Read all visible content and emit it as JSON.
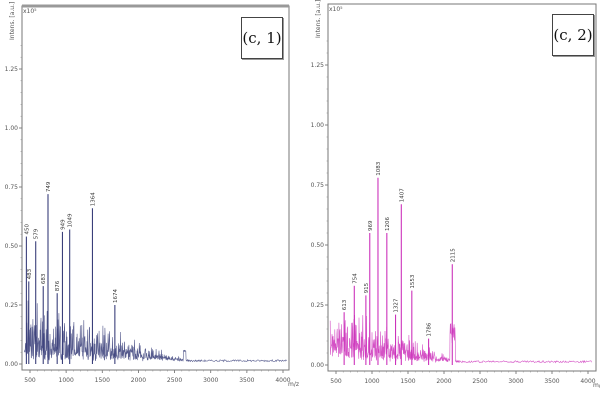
{
  "chart_data": [
    {
      "type": "line",
      "panel_label": "(c, 1)",
      "title": "",
      "xlabel": "m/z",
      "ylabel": "Intens. [a.u.]",
      "y_multiplier": "x10^5",
      "xlim": [
        400,
        4100
      ],
      "ylim": [
        0,
        1.4
      ],
      "x_ticks": [
        500,
        1000,
        1500,
        2000,
        2500,
        3000,
        3500,
        4000
      ],
      "y_ticks": [
        "0.00",
        "0.25",
        "0.50",
        "0.75",
        "1.00",
        "1.25"
      ],
      "color": "#3a3f7a",
      "labeled_peaks": [
        {
          "mz": 450,
          "intensity": 0.54,
          "label": "450"
        },
        {
          "mz": 483,
          "intensity": 0.35,
          "label": "483"
        },
        {
          "mz": 579,
          "intensity": 0.52,
          "label": "579"
        },
        {
          "mz": 683,
          "intensity": 0.33,
          "label": "683"
        },
        {
          "mz": 749,
          "intensity": 0.72,
          "label": "749"
        },
        {
          "mz": 876,
          "intensity": 0.3,
          "label": "876"
        },
        {
          "mz": 949,
          "intensity": 0.56,
          "label": "949"
        },
        {
          "mz": 1049,
          "intensity": 0.57,
          "label": "1049"
        },
        {
          "mz": 1364,
          "intensity": 0.66,
          "label": "1364"
        },
        {
          "mz": 1674,
          "intensity": 0.25,
          "label": "1674"
        }
      ],
      "notable_minor_peaks": [
        {
          "mz": 2640,
          "intensity": 0.06
        }
      ],
      "grid": false,
      "legend": null
    },
    {
      "type": "line",
      "panel_label": "(c, 2)",
      "title": "",
      "xlabel": "m/z",
      "ylabel": "Intens. [a.u.]",
      "y_multiplier": "x10^5",
      "xlim": [
        400,
        4100
      ],
      "ylim": [
        0,
        1.4
      ],
      "x_ticks": [
        500,
        1000,
        1500,
        2000,
        2500,
        3000,
        3500,
        4000
      ],
      "y_ticks": [
        "0.00",
        "0.25",
        "0.50",
        "0.75",
        "1.00",
        "1.25"
      ],
      "color": "#cc33bb",
      "labeled_peaks": [
        {
          "mz": 613,
          "intensity": 0.22,
          "label": "613"
        },
        {
          "mz": 754,
          "intensity": 0.33,
          "label": "754"
        },
        {
          "mz": 915,
          "intensity": 0.29,
          "label": "915"
        },
        {
          "mz": 969,
          "intensity": 0.55,
          "label": "969"
        },
        {
          "mz": 1083,
          "intensity": 0.78,
          "label": "1083"
        },
        {
          "mz": 1206,
          "intensity": 0.55,
          "label": "1206"
        },
        {
          "mz": 1327,
          "intensity": 0.21,
          "label": "1327"
        },
        {
          "mz": 1407,
          "intensity": 0.67,
          "label": "1407"
        },
        {
          "mz": 1553,
          "intensity": 0.31,
          "label": "1553"
        },
        {
          "mz": 1786,
          "intensity": 0.11,
          "label": "1786"
        },
        {
          "mz": 2115,
          "intensity": 0.42,
          "label": "2115"
        }
      ],
      "grid": false,
      "legend": null
    }
  ]
}
